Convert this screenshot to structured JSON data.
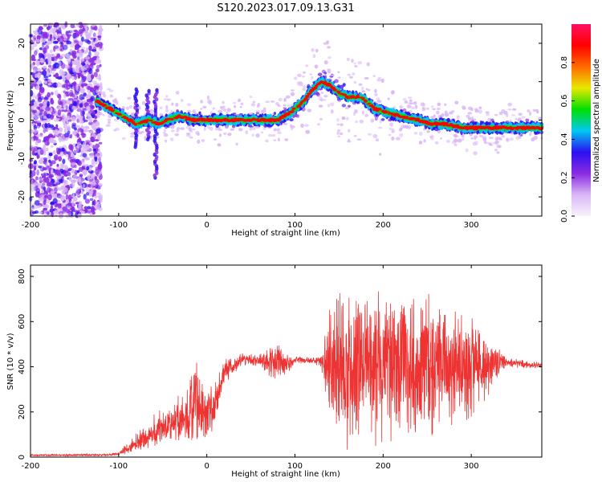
{
  "figure": {
    "title": "S120.2023.017.09.13.G31"
  },
  "chart_data": [
    {
      "type": "heatmap",
      "xlabel": "Height of straight line (km)",
      "ylabel": "Frequency (Hz)",
      "xlim": [
        -200,
        380
      ],
      "ylim": [
        -25,
        25
      ],
      "x_ticks": [
        -200,
        -100,
        0,
        100,
        200,
        300
      ],
      "y_ticks": [
        -20,
        -10,
        0,
        10,
        20
      ],
      "colorbar": {
        "label": "Normalized spectral amplitude",
        "range": [
          0.0,
          1.0
        ],
        "ticks": [
          0.0,
          0.2,
          0.4,
          0.6,
          0.8
        ],
        "colormap": [
          "#f8f2fb",
          "#d9b6f5",
          "#8a2be2",
          "#2a10f0",
          "#00c8f0",
          "#00e000",
          "#e8e800",
          "#ff6a00",
          "#ff0000",
          "#ff1060"
        ]
      },
      "ridge": {
        "x": [
          -125,
          -110,
          -95,
          -80,
          -65,
          -55,
          -45,
          -30,
          -15,
          0,
          30,
          60,
          80,
          95,
          110,
          120,
          130,
          140,
          150,
          160,
          175,
          190,
          205,
          220,
          240,
          255,
          270,
          290,
          300,
          320,
          340,
          360,
          380
        ],
        "y": [
          5,
          3,
          1,
          -1,
          0,
          -1,
          0,
          1,
          0,
          0,
          0,
          0,
          0,
          2,
          5,
          8,
          10,
          9,
          7,
          6,
          6,
          3,
          2,
          1,
          0,
          -1,
          -1,
          -2,
          -2,
          -2,
          -2,
          -2,
          -2
        ]
      },
      "spikes": [
        {
          "x": -80,
          "y_min": -7,
          "y_max": 8
        },
        {
          "x": -67,
          "y_min": -5,
          "y_max": 8
        },
        {
          "x": -58,
          "y_min": -15,
          "y_max": 8
        }
      ],
      "noise_region_x": [
        -200,
        -120
      ]
    },
    {
      "type": "line",
      "xlabel": "Height of straight line (km)",
      "ylabel": "SNR (10 * v/v)",
      "xlim": [
        -200,
        380
      ],
      "ylim": [
        0,
        850
      ],
      "x_ticks": [
        -200,
        -100,
        0,
        100,
        200,
        300
      ],
      "y_ticks": [
        0,
        200,
        400,
        600,
        800
      ],
      "color": "#ee3333",
      "envelope": {
        "x": [
          -200,
          -110,
          -100,
          -80,
          -60,
          -40,
          -20,
          -12,
          -10,
          0,
          10,
          20,
          40,
          60,
          80,
          90,
          100,
          120,
          130,
          140,
          150,
          160,
          180,
          200,
          220,
          240,
          260,
          280,
          300,
          320,
          340,
          360,
          380
        ],
        "center": [
          8,
          10,
          15,
          60,
          110,
          150,
          180,
          300,
          200,
          200,
          230,
          380,
          430,
          430,
          420,
          410,
          430,
          430,
          420,
          410,
          400,
          400,
          420,
          400,
          420,
          400,
          410,
          420,
          400,
          410,
          420,
          410,
          405
        ],
        "spread": [
          5,
          5,
          10,
          50,
          80,
          110,
          150,
          280,
          150,
          160,
          120,
          60,
          30,
          30,
          120,
          60,
          15,
          20,
          40,
          300,
          380,
          400,
          430,
          380,
          380,
          400,
          330,
          300,
          280,
          140,
          25,
          20,
          15
        ]
      }
    }
  ]
}
